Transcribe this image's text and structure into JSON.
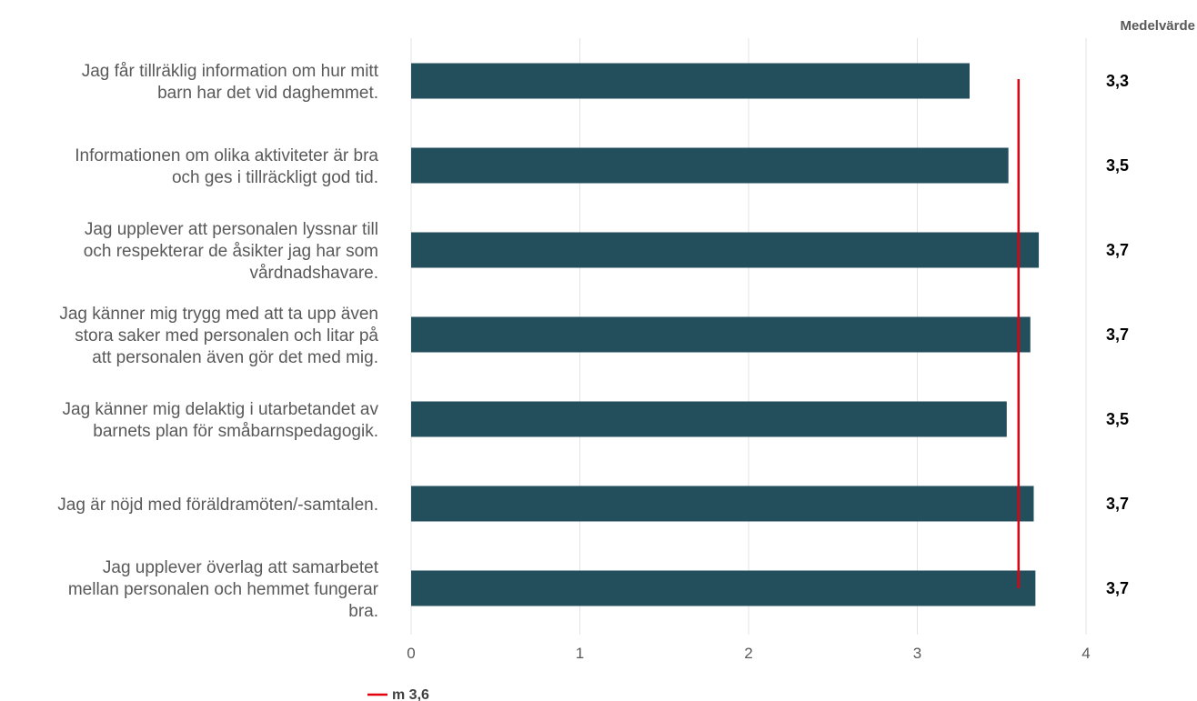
{
  "chart_data": {
    "type": "bar",
    "orientation": "horizontal",
    "categories": [
      [
        "Jag får tillräklig information om hur mitt",
        "barn har det vid daghemmet."
      ],
      [
        "Informationen om olika aktiviteter är bra",
        "och ges i tillräckligt god tid."
      ],
      [
        "Jag upplever att personalen lyssnar till",
        "och respekterar de åsikter jag har som",
        "vårdnadshavare."
      ],
      [
        "Jag känner mig trygg med att ta upp även",
        "stora saker med personalen och litar på",
        "att personalen även gör det med mig."
      ],
      [
        "Jag känner mig delaktig i utarbetandet av",
        "barnets plan för småbarnspedagogik."
      ],
      [
        "Jag är nöjd med föräldramöten/-samtalen."
      ],
      [
        "Jag upplever överlag att samarbetet",
        "mellan personalen och hemmet fungerar",
        "bra."
      ]
    ],
    "values": [
      3.31,
      3.54,
      3.72,
      3.67,
      3.53,
      3.69,
      3.7
    ],
    "mean_column": {
      "header": "Medelvärde",
      "values": [
        "3,3",
        "3,5",
        "3,7",
        "3,7",
        "3,5",
        "3,7",
        "3,7"
      ]
    },
    "reference_line": {
      "value": 3.6,
      "label": "m 3,6",
      "color": "#e3000f"
    },
    "x_ticks": [
      "0",
      "1",
      "2",
      "3",
      "4"
    ],
    "xlim": [
      0,
      4
    ],
    "bar_color": "#234e5c",
    "grid": true,
    "legend": "bottom-left"
  }
}
